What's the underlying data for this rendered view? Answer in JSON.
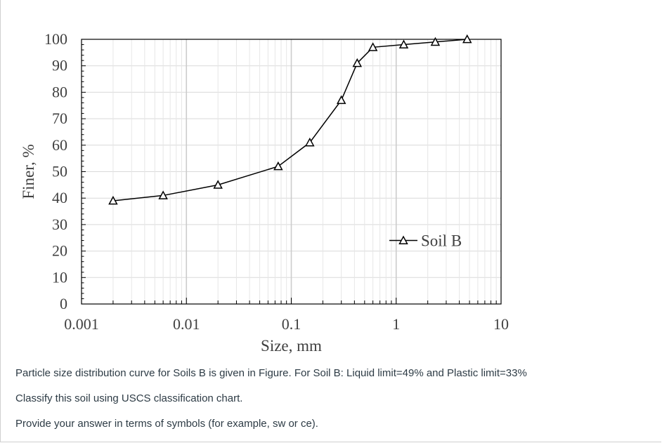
{
  "chart_data": {
    "type": "scatter",
    "x_scale": "log",
    "xlabel": "Size, mm",
    "ylabel": "Finer, %",
    "xlim": [
      0.001,
      10
    ],
    "ylim": [
      0,
      100
    ],
    "x_ticks": [
      "0.001",
      "0.01",
      "0.1",
      "1",
      "10"
    ],
    "y_ticks": [
      "0",
      "10",
      "20",
      "30",
      "40",
      "50",
      "60",
      "70",
      "80",
      "90",
      "100"
    ],
    "grid": true,
    "legend_position": "lower-right",
    "line_color": "#000000",
    "marker": "open-triangle",
    "series": [
      {
        "name": "Soil B",
        "x": [
          0.002,
          0.006,
          0.02,
          0.075,
          0.15,
          0.3,
          0.425,
          0.6,
          1.18,
          2.36,
          4.75
        ],
        "y": [
          39,
          41,
          45,
          52,
          61,
          77,
          91,
          97,
          98,
          99,
          100
        ]
      }
    ]
  },
  "text": {
    "line1": "Particle size distribution curve for Soils B is given in Figure. For Soil B: Liquid limit=49% and Plastic limit=33%",
    "line2": "Classify this soil using USCS classification chart.",
    "line3": "Provide your answer in terms of symbols (for example, sw or ce)."
  }
}
